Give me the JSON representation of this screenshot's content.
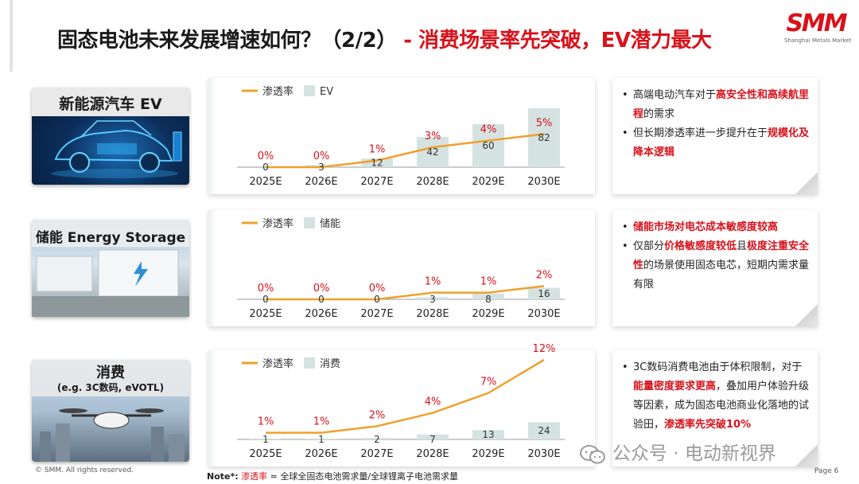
{
  "title": {
    "main": "固态电池未来发展增速如何？",
    "part": "（2/2）",
    "dash": "-",
    "highlight": "消费场景率先突破，EV潜力最大"
  },
  "logo": {
    "mark": "SMM",
    "sub": "Shanghai Metals Market"
  },
  "rows": [
    {
      "image_label": "新能源汽车 EV",
      "image_sublabel": "",
      "notes": [
        {
          "segments": [
            {
              "text": "高端电动汽车对于",
              "red": false
            },
            {
              "text": "高安全性和高续航里程",
              "red": true
            },
            {
              "text": "的需求",
              "red": false
            }
          ]
        },
        {
          "segments": [
            {
              "text": "但长期渗透率进一步提升在于",
              "red": false
            },
            {
              "text": "规模化及降本逻辑",
              "red": true
            }
          ]
        }
      ]
    },
    {
      "image_label": "储能 Energy Storage",
      "image_sublabel": "",
      "notes": [
        {
          "segments": [
            {
              "text": "储能市场对电芯成本敏感度较高",
              "red": true
            }
          ]
        },
        {
          "segments": [
            {
              "text": "仅部分",
              "red": false
            },
            {
              "text": "价格敏感度较低",
              "red": true
            },
            {
              "text": "且",
              "red": false
            },
            {
              "text": "极度注重安全性",
              "red": true
            },
            {
              "text": "的场景使用固态电芯，短期内需求量有限",
              "red": false
            }
          ]
        }
      ]
    },
    {
      "image_label": "消费",
      "image_sublabel": "(e.g. 3C数码, eVOTL)",
      "notes": [
        {
          "segments": [
            {
              "text": "3C数码消费电池由于体积限制，对于",
              "red": false
            },
            {
              "text": "能量密度要求更高",
              "red": true
            },
            {
              "text": "，叠加用户体验升级等因素，成为固态电池商业化落地的试验田，",
              "red": false
            },
            {
              "text": "渗透率先突破10%",
              "red": true
            }
          ]
        }
      ]
    }
  ],
  "chart_data": [
    {
      "type": "bar",
      "categories": [
        "2025E",
        "2026E",
        "2027E",
        "2028E",
        "2029E",
        "2030E"
      ],
      "series": [
        {
          "name": "EV",
          "kind": "bar",
          "values": [
            0,
            3,
            12,
            42,
            60,
            82
          ],
          "labels": [
            "0",
            "3",
            "12",
            "42",
            "60",
            "82"
          ]
        },
        {
          "name": "渗透率",
          "kind": "line",
          "values": [
            0,
            0,
            1,
            3,
            4,
            5
          ],
          "labels": [
            "0%",
            "0%",
            "1%",
            "3%",
            "4%",
            "5%"
          ]
        }
      ],
      "legend": {
        "position": "top-left",
        "line_label": "渗透率",
        "bar_label": "EV"
      },
      "colors": {
        "bar": "#d5e2e2",
        "line": "#f0a02d",
        "label_red": "#d8121b"
      }
    },
    {
      "type": "bar",
      "categories": [
        "2025E",
        "2026E",
        "2027E",
        "2028E",
        "2029E",
        "2030E"
      ],
      "series": [
        {
          "name": "储能",
          "kind": "bar",
          "values": [
            0,
            0,
            0,
            3,
            8,
            16
          ],
          "labels": [
            "0",
            "0",
            "0",
            "3",
            "8",
            "16"
          ]
        },
        {
          "name": "渗透率",
          "kind": "line",
          "values": [
            0,
            0,
            0,
            1,
            1,
            2
          ],
          "labels": [
            "0%",
            "0%",
            "0%",
            "1%",
            "1%",
            "2%"
          ]
        }
      ],
      "legend": {
        "position": "top-left",
        "line_label": "渗透率",
        "bar_label": "储能"
      },
      "colors": {
        "bar": "#d5e2e2",
        "line": "#f0a02d",
        "label_red": "#d8121b"
      }
    },
    {
      "type": "bar",
      "categories": [
        "2025E",
        "2026E",
        "2027E",
        "2028E",
        "2029E",
        "2030E"
      ],
      "series": [
        {
          "name": "消费",
          "kind": "bar",
          "values": [
            1,
            1,
            2,
            7,
            13,
            24
          ],
          "labels": [
            "1",
            "1",
            "2",
            "7",
            "13",
            "24"
          ]
        },
        {
          "name": "渗透率",
          "kind": "line",
          "values": [
            1,
            1,
            2,
            4,
            7,
            12
          ],
          "labels": [
            "1%",
            "1%",
            "2%",
            "4%",
            "7%",
            "12%"
          ]
        }
      ],
      "legend": {
        "position": "top-left",
        "line_label": "渗透率",
        "bar_label": "消费"
      },
      "colors": {
        "bar": "#d5e2e2",
        "line": "#f0a02d",
        "label_red": "#d8121b"
      }
    }
  ],
  "footer": {
    "copyright": "© SMM. All rights reserved.",
    "note_label": "Note*:",
    "note_term": "渗透率",
    "note_text": " = 全球全固态电池需求量/全球锂离子电池需求量",
    "page": "Page 6"
  },
  "watermark": {
    "text": "公众号 · 电动新视界",
    "icon": "wechat-icon"
  }
}
